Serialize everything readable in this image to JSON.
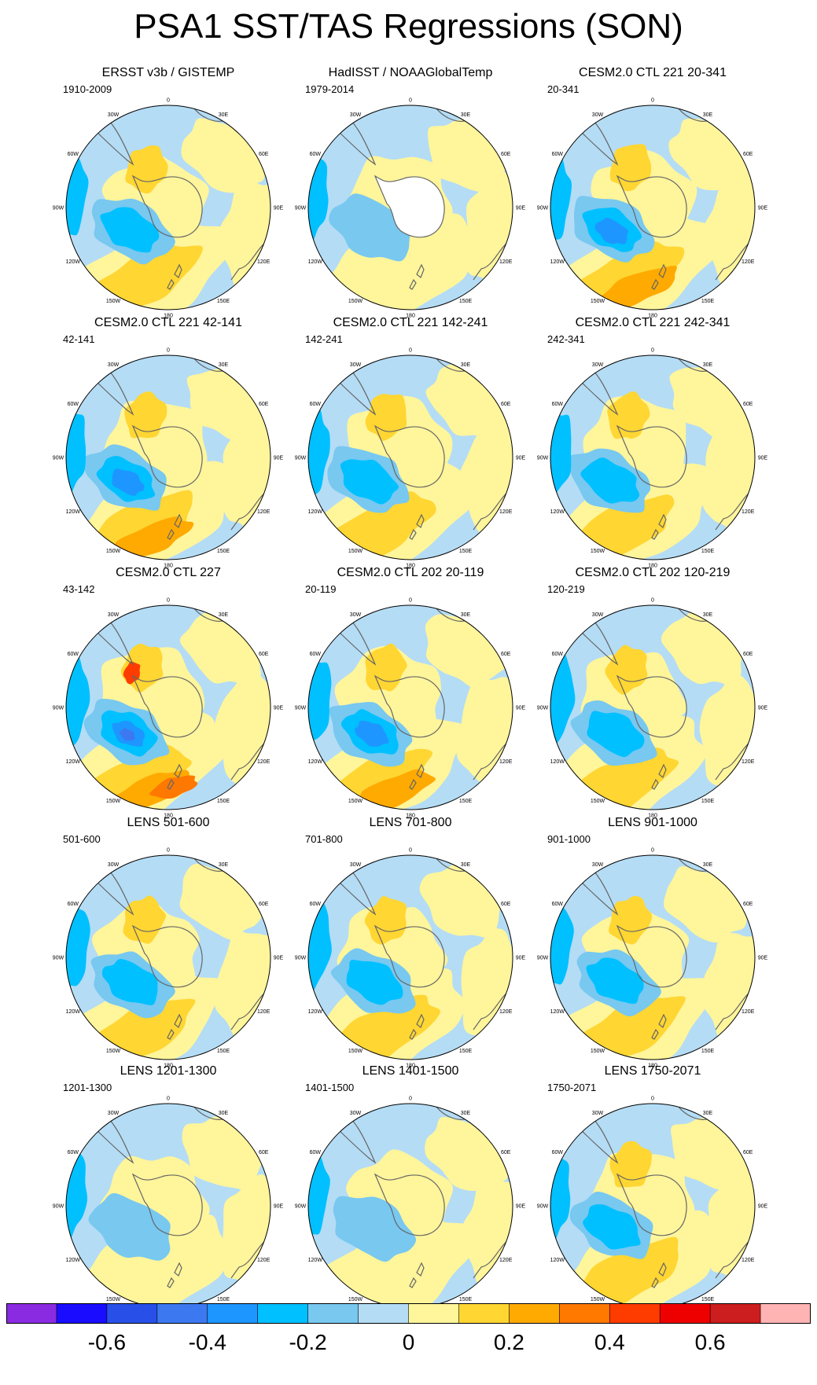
{
  "title": "PSA1 SST/TAS Regressions (SON)",
  "longitude_labels": [
    "0",
    "30E",
    "60E",
    "90E",
    "120E",
    "150E",
    "180",
    "150W",
    "120W",
    "90W",
    "60W",
    "30W"
  ],
  "chart_data": {
    "type": "heatmap",
    "projection": "south-polar-stereographic",
    "variable": "SST/TAS regression onto PSA1 index (SON)",
    "panels": [
      {
        "title": "ERSST v3b / GISTEMP",
        "period": "1910-2009",
        "missing_antarctica": false
      },
      {
        "title": "HadISST / NOAAGlobalTemp",
        "period": "1979-2014",
        "missing_antarctica": true
      },
      {
        "title": "CESM2.0 CTL 221 20-341",
        "period": "20-341",
        "missing_antarctica": false
      },
      {
        "title": "CESM2.0 CTL 221 42-141",
        "period": "42-141",
        "missing_antarctica": false
      },
      {
        "title": "CESM2.0 CTL 221 142-241",
        "period": "142-241",
        "missing_antarctica": false
      },
      {
        "title": "CESM2.0 CTL 221 242-341",
        "period": "242-341",
        "missing_antarctica": false
      },
      {
        "title": "CESM2.0 CTL 227",
        "period": "43-142",
        "missing_antarctica": false
      },
      {
        "title": "CESM2.0 CTL 202 20-119",
        "period": "20-119",
        "missing_antarctica": false
      },
      {
        "title": "CESM2.0 CTL 202 120-219",
        "period": "120-219",
        "missing_antarctica": false
      },
      {
        "title": "LENS 501-600",
        "period": "501-600",
        "missing_antarctica": false
      },
      {
        "title": "LENS 701-800",
        "period": "701-800",
        "missing_antarctica": false
      },
      {
        "title": "LENS 901-1000",
        "period": "901-1000",
        "missing_antarctica": false
      },
      {
        "title": "LENS 1201-1300",
        "period": "1201-1300",
        "missing_antarctica": false
      },
      {
        "title": "LENS 1401-1500",
        "period": "1401-1500",
        "missing_antarctica": false
      },
      {
        "title": "LENS 1750-2071",
        "period": "1750-2071",
        "missing_antarctica": false
      }
    ],
    "colorbar": {
      "colors": [
        "#8a2be2",
        "#1a0dff",
        "#2850e8",
        "#3c78f0",
        "#1e96ff",
        "#00c0ff",
        "#78c8f0",
        "#b4dcf5",
        "#fff59b",
        "#ffd632",
        "#ffaa00",
        "#ff7800",
        "#ff3c00",
        "#ee0000",
        "#cc1e1e",
        "#ffb4b4"
      ],
      "labels": [
        "-0.6",
        "-0.4",
        "-0.2",
        "0",
        "0.2",
        "0.4",
        "0.6"
      ],
      "range": [
        -0.8,
        0.8
      ]
    }
  }
}
